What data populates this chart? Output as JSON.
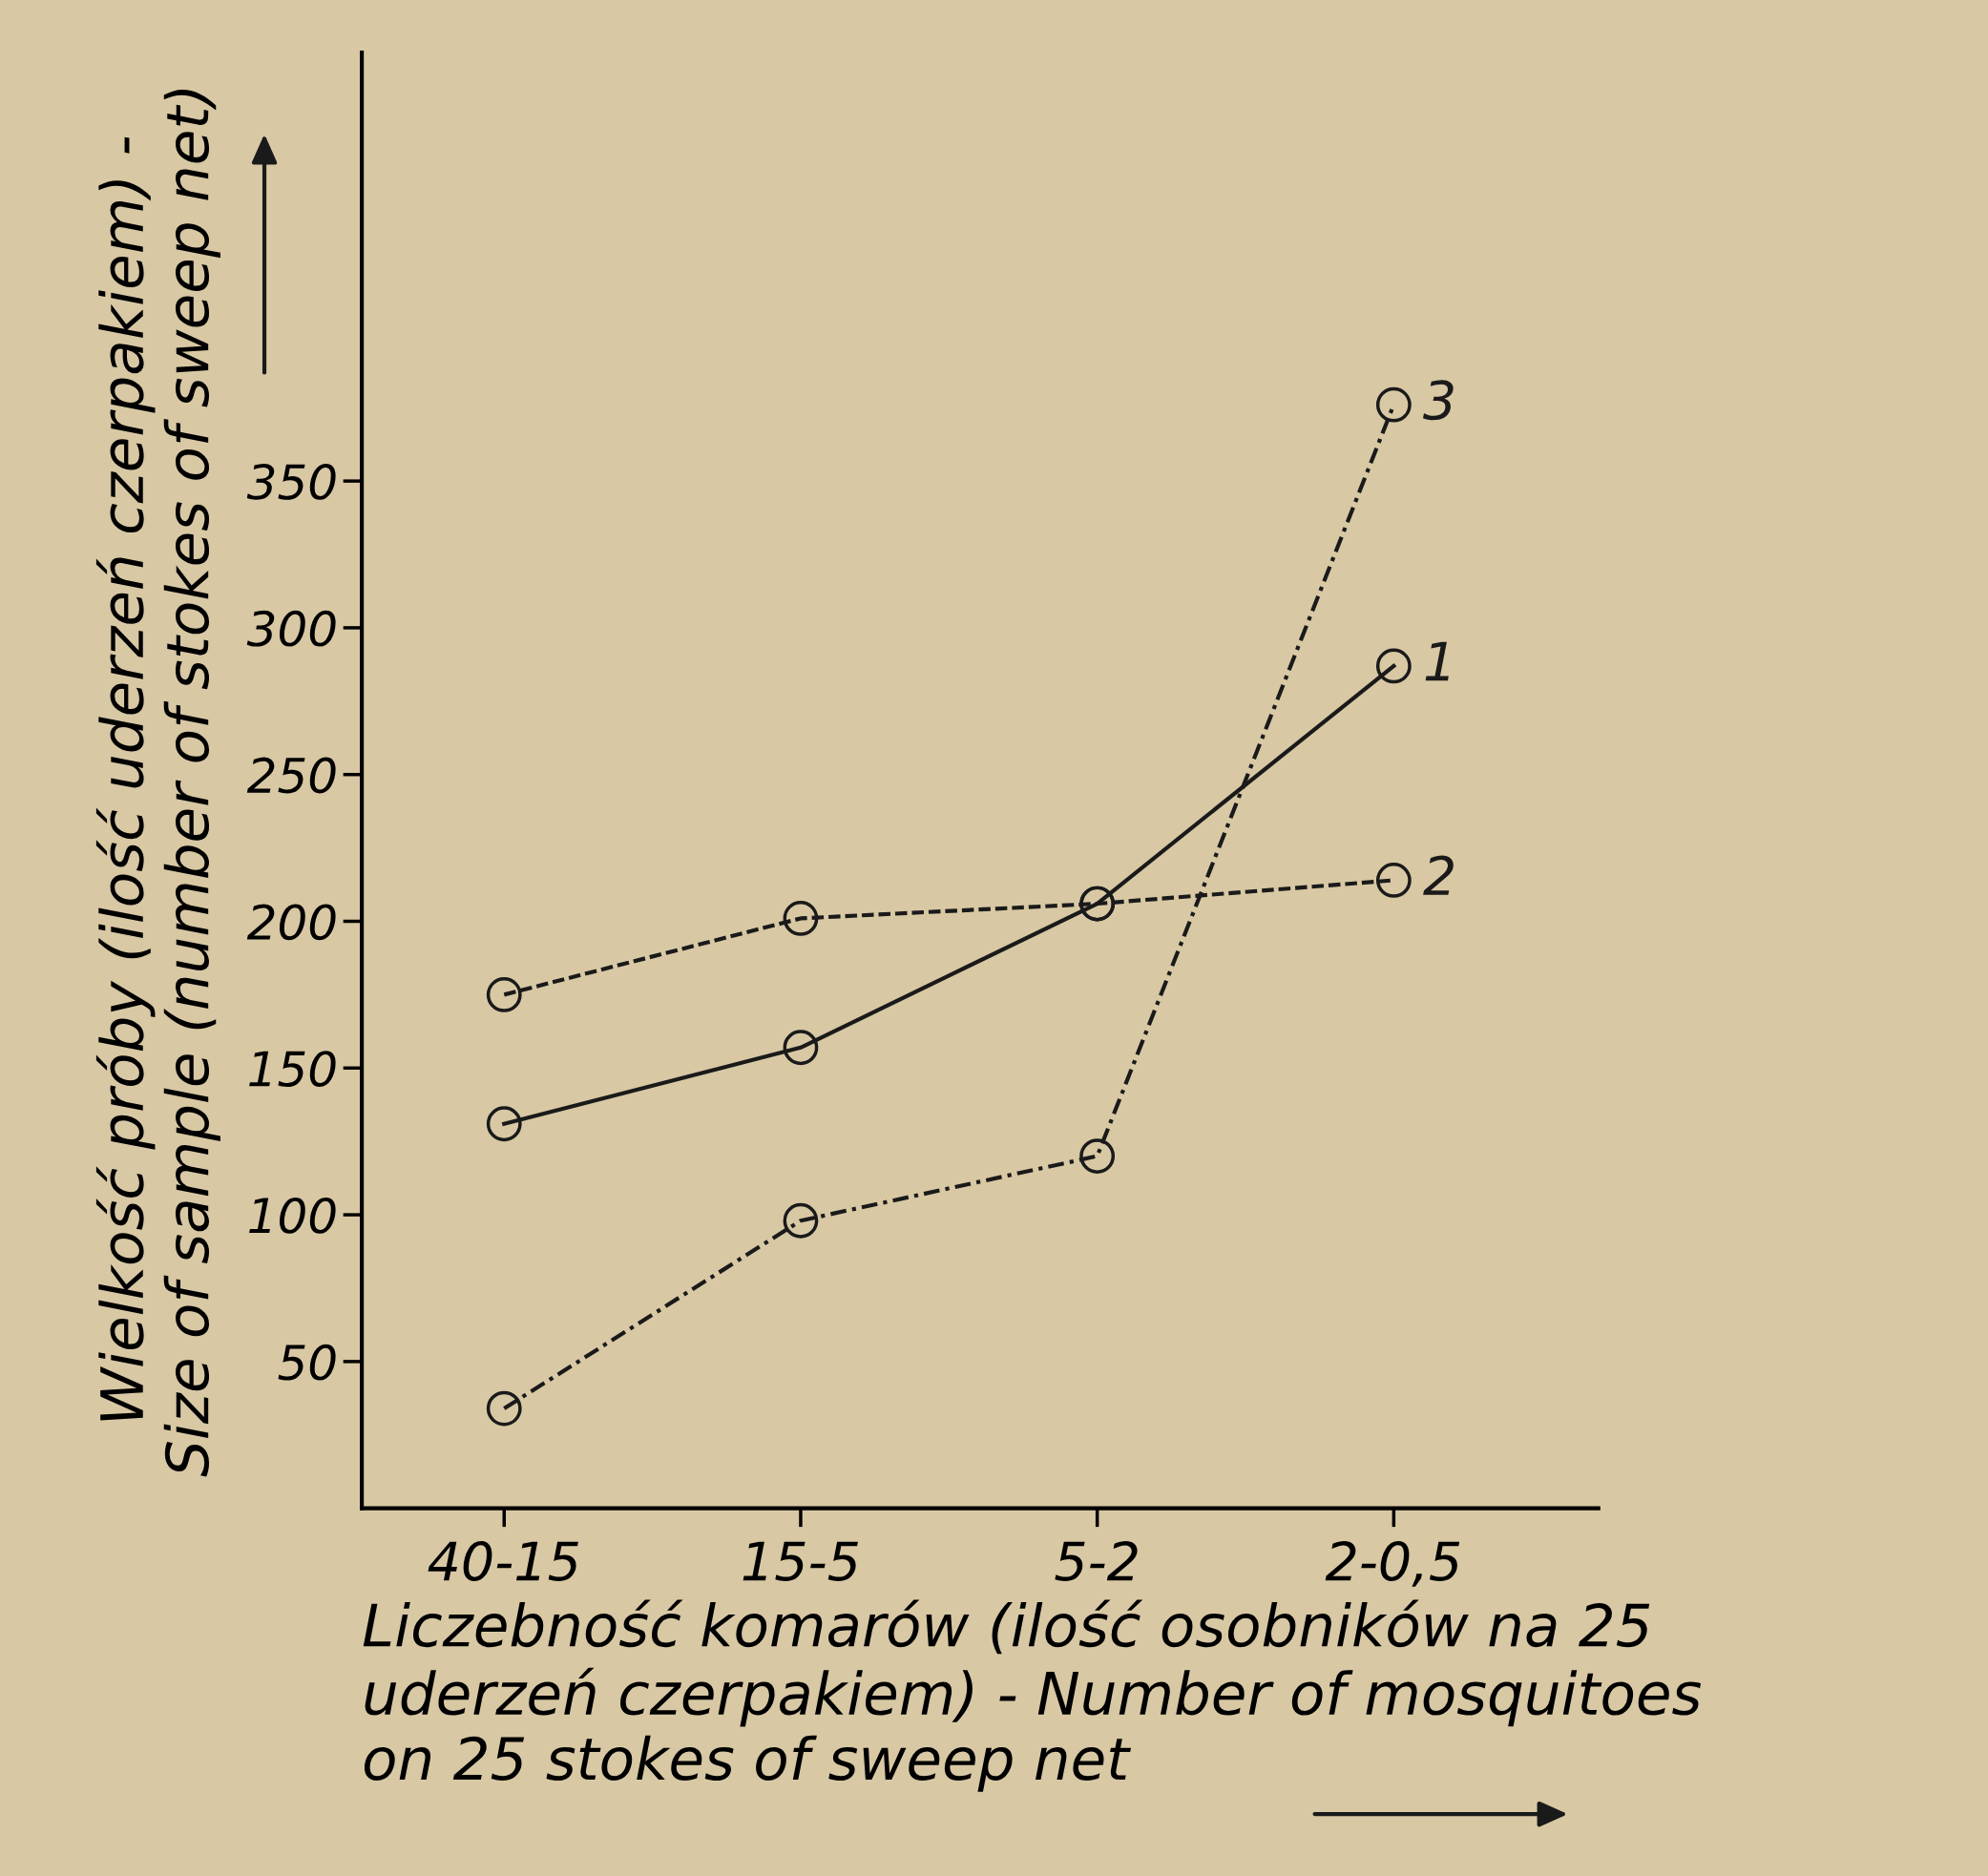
{
  "chart_data": {
    "type": "line",
    "xlabel": "Liczebność komarów (ilość osobników na 25\nuderzeń czerpakiem) - Number of mosquitoes\non 25 stokes of sweep net",
    "ylabel": "Wielkość próby (ilość uderzeń czerpakiem) -\nSize of sample (number of stokes of sweep net)",
    "categories": [
      "40-15",
      "15-5",
      "5-2",
      "2-0,5"
    ],
    "series": [
      {
        "name": "1",
        "color": "#1a1a1a",
        "line_style": "solid",
        "values": [
          131,
          157,
          206,
          287
        ]
      },
      {
        "name": "2",
        "color": "#1a1a1a",
        "line_style": "dashed",
        "values": [
          175,
          201,
          206,
          214
        ]
      },
      {
        "name": "3",
        "color": "#1a1a1a",
        "line_style": "dashdot",
        "values": [
          34,
          98,
          120,
          376
        ]
      }
    ],
    "ylim": [
      0,
      496
    ],
    "yticks": [
      50,
      100,
      150,
      200,
      250,
      300,
      350
    ],
    "marker": "circle",
    "grid": false,
    "legend": false
  }
}
